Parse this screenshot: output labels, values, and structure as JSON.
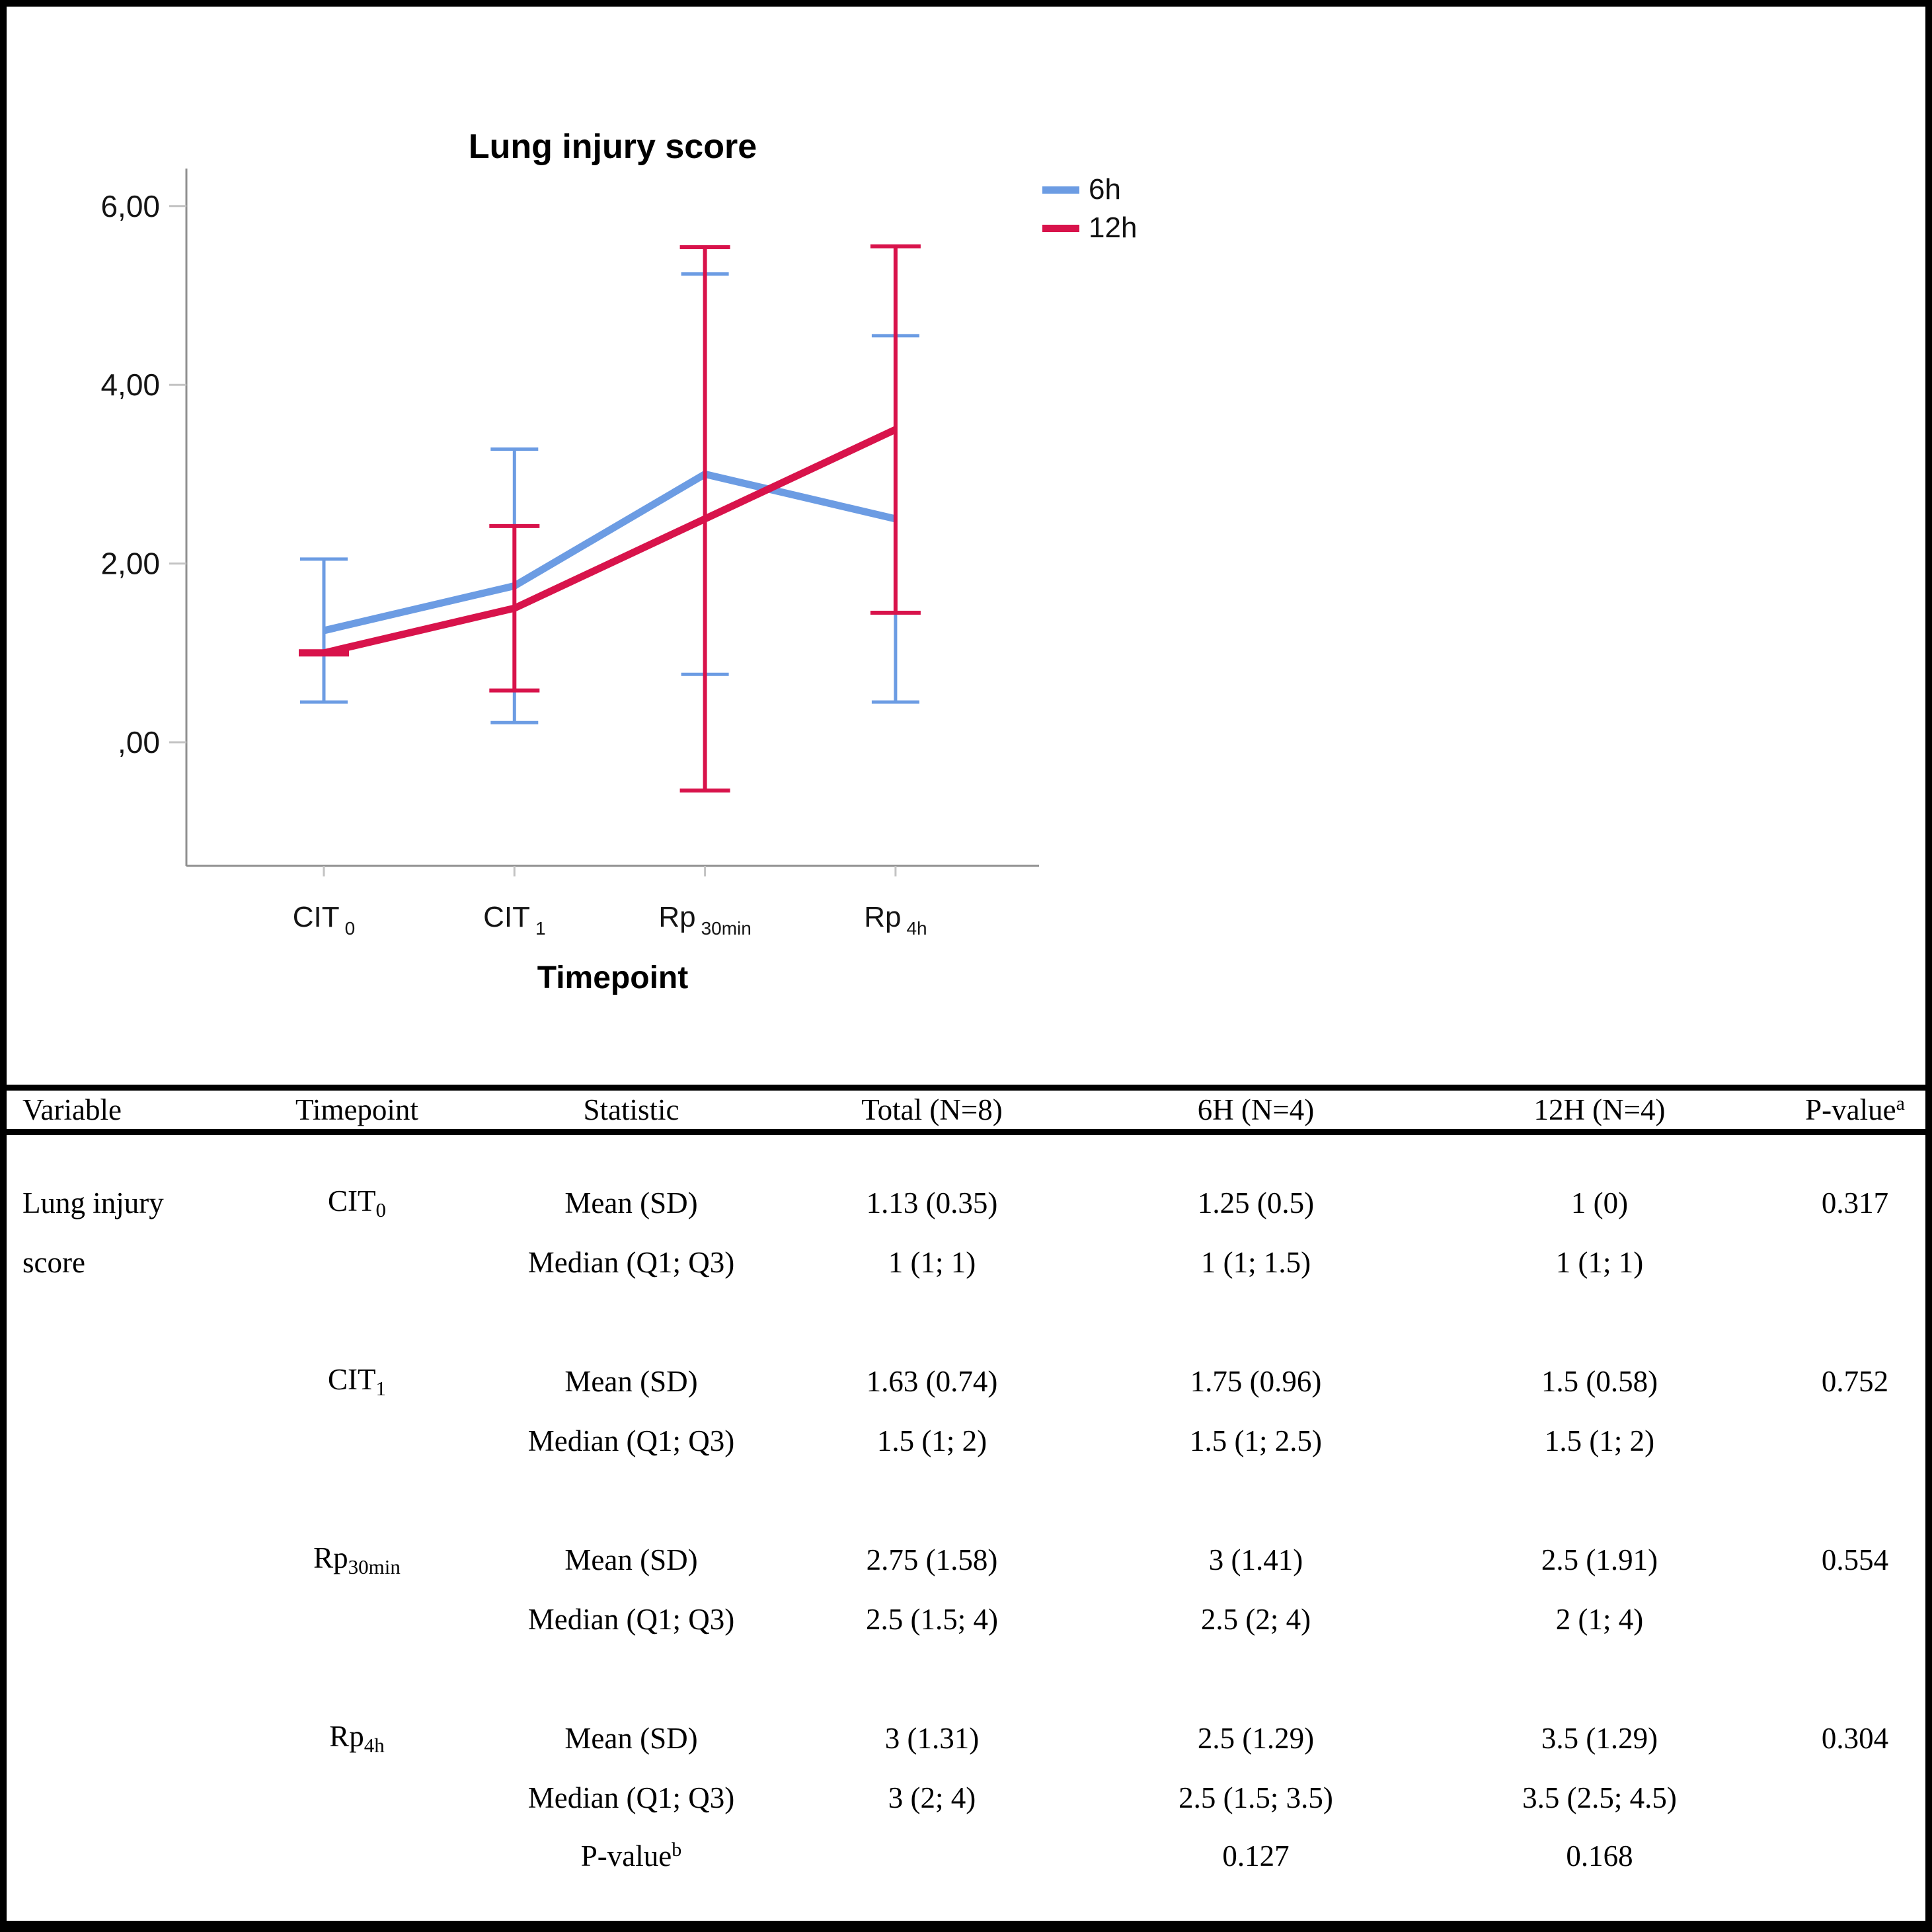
{
  "chart": {
    "title": "Lung injury score",
    "x_axis_label": "Timepoint",
    "legend": [
      {
        "label": "6h",
        "color": "#6C9CE3"
      },
      {
        "label": "12h",
        "color": "#D8134B"
      }
    ]
  },
  "chart_data": {
    "type": "line",
    "title": "Lung injury score",
    "xlabel": "Timepoint",
    "ylabel": "",
    "categories": [
      {
        "label": "CIT",
        "sub": "0"
      },
      {
        "label": "CIT",
        "sub": "1"
      },
      {
        "label": "Rp",
        "sub": "30min"
      },
      {
        "label": "Rp",
        "sub": "4h"
      }
    ],
    "y_ticks": [
      {
        "value": 6,
        "label": "6,00"
      },
      {
        "value": 4,
        "label": "4,00"
      },
      {
        "value": 2,
        "label": "2,00"
      },
      {
        "value": 0,
        "label": ",00"
      }
    ],
    "ylim": [
      -1.4,
      6.2
    ],
    "grid": false,
    "legend_position": "top-right",
    "error_bar_type": "mean with 95% CI",
    "series": [
      {
        "name": "6h",
        "color": "#6C9CE3",
        "values": [
          1.25,
          1.75,
          3.0,
          2.5
        ],
        "ci_low": [
          0.45,
          0.22,
          0.76,
          0.45
        ],
        "ci_high": [
          2.05,
          3.28,
          5.24,
          4.55
        ]
      },
      {
        "name": "12h",
        "color": "#D8134B",
        "values": [
          1.0,
          1.5,
          2.5,
          3.5
        ],
        "ci_low": [
          1.0,
          0.58,
          -0.54,
          1.45
        ],
        "ci_high": [
          1.0,
          2.42,
          5.54,
          5.55
        ]
      }
    ]
  },
  "table": {
    "headers": {
      "variable": "Variable",
      "timepoint": "Timepoint",
      "statistic": "Statistic",
      "total": "Total (N=8)",
      "h6": "6H (N=4)",
      "h12": "12H (N=4)",
      "p": "P-value",
      "p_sup": "a"
    },
    "rows": [
      {
        "variable": "Lung injury",
        "tp_base": "CIT",
        "tp_sub": "0",
        "statistic": "Mean (SD)",
        "total": "1.13 (0.35)",
        "h6": "1.25 (0.5)",
        "h12": "1 (0)",
        "p": "0.317"
      },
      {
        "variable": "score",
        "statistic": "Median (Q1; Q3)",
        "total": "1 (1; 1)",
        "h6": "1 (1; 1.5)",
        "h12": "1 (1; 1)"
      },
      {
        "tp_base": "CIT",
        "tp_sub": "1",
        "statistic": "Mean (SD)",
        "total": "1.63 (0.74)",
        "h6": "1.75 (0.96)",
        "h12": "1.5 (0.58)",
        "p": "0.752"
      },
      {
        "statistic": "Median (Q1; Q3)",
        "total": "1.5 (1; 2)",
        "h6": "1.5 (1; 2.5)",
        "h12": "1.5 (1; 2)"
      },
      {
        "tp_base": "Rp",
        "tp_sub": "30min",
        "statistic": "Mean (SD)",
        "total": "2.75 (1.58)",
        "h6": "3 (1.41)",
        "h12": "2.5 (1.91)",
        "p": "0.554"
      },
      {
        "statistic": "Median (Q1; Q3)",
        "total": "2.5 (1.5; 4)",
        "h6": "2.5 (2; 4)",
        "h12": "2 (1; 4)"
      },
      {
        "tp_base": "Rp",
        "tp_sub": "4h",
        "statistic": "Mean (SD)",
        "total": "3 (1.31)",
        "h6": "2.5 (1.29)",
        "h12": "3.5 (1.29)",
        "p": "0.304"
      },
      {
        "statistic": "Median (Q1; Q3)",
        "total": "3 (2; 4)",
        "h6": "2.5 (1.5; 3.5)",
        "h12": "3.5 (2.5; 4.5)"
      },
      {
        "statistic": "P-value",
        "stat_sup": "b",
        "h6": "0.127",
        "h12": "0.168"
      }
    ]
  }
}
